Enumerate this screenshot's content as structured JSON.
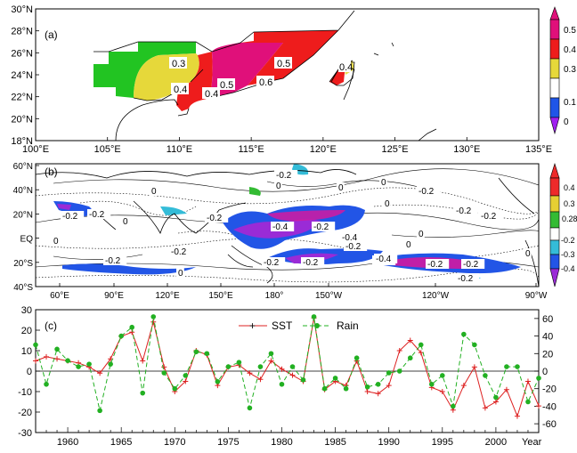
{
  "panel_a": {
    "label": "(a)",
    "lat_ticks": [
      "30°N",
      "28°N",
      "26°N",
      "24°N",
      "22°N",
      "20°N",
      "18°N"
    ],
    "lon_ticks": [
      "100°E",
      "105°E",
      "110°E",
      "115°E",
      "120°E",
      "125°E",
      "130°E",
      "135°E"
    ],
    "contour_labels": [
      "0.3",
      "0.4",
      "0.4",
      "0.5",
      "0.5",
      "0.6",
      "0.4"
    ],
    "colorbar_labels": [
      "0.5",
      "0.4",
      "0.3",
      "0.1",
      "0"
    ],
    "colors": {
      "magenta": "#e0107a",
      "red": "#ee1c1c",
      "yellow": "#e6d83a",
      "green": "#22c422",
      "blue": "#1f55e8",
      "purple": "#a020f0",
      "light_yellow": "#eadc4f"
    }
  },
  "panel_b": {
    "label": "(b)",
    "lat_ticks": [
      "60°N",
      "40°N",
      "20°N",
      "EQ",
      "20°S",
      "40°S"
    ],
    "lon_ticks": [
      "60°E",
      "90°E",
      "120°E",
      "150°E",
      "180°",
      "150°W",
      "120°W",
      "90°W"
    ],
    "contour_labels": [
      "-0.2",
      "-0.2",
      "-0.2",
      "0",
      "0",
      "0",
      "-0.2",
      "0",
      "-0.2",
      "-0.4",
      "-0.2",
      "0",
      "0",
      "0",
      "-0.2",
      "-0.2",
      "-0.2",
      "-0.4",
      "-0.4",
      "-0.2",
      "-0.2",
      "-0.2",
      "-0.4",
      "-0.2",
      "0",
      "-0.2",
      "-0.2",
      "0",
      "-0.2",
      "0",
      "0",
      "0"
    ],
    "colorbar_labels": [
      "0.4",
      "0.3",
      "0.28",
      "-0.2",
      "-0.3",
      "-0.4"
    ],
    "colors": {
      "blue": "#2255e6",
      "cyan": "#34bcd8",
      "purple": "#9a2bd6",
      "magenta": "#d21aa0",
      "green": "#33bb33",
      "yellow": "#e6cf33",
      "red": "#ee2a2a"
    }
  },
  "chart_data": {
    "type": "line",
    "panel_label": "(c)",
    "xlabel": "Year",
    "x_ticks": [
      "1960",
      "1965",
      "1970",
      "1975",
      "1980",
      "1985",
      "1990",
      "1995",
      "2000"
    ],
    "xlim": [
      1957,
      2004
    ],
    "y_left_ticks": [
      "30",
      "20",
      "10",
      "0",
      "-10",
      "-20",
      "-30"
    ],
    "ylim_left": [
      -30,
      30
    ],
    "y_right_ticks": [
      "60",
      "40",
      "20",
      "0",
      "-20",
      "-40",
      "-60"
    ],
    "ylim_right": [
      -70,
      70
    ],
    "legend": [
      "SST",
      "Rain"
    ],
    "x": [
      1957,
      1958,
      1959,
      1960,
      1961,
      1962,
      1963,
      1964,
      1965,
      1966,
      1967,
      1968,
      1969,
      1970,
      1971,
      1972,
      1973,
      1974,
      1975,
      1976,
      1977,
      1978,
      1979,
      1980,
      1981,
      1982,
      1983,
      1984,
      1985,
      1986,
      1987,
      1988,
      1989,
      1990,
      1991,
      1992,
      1993,
      1994,
      1995,
      1996,
      1997,
      1998,
      1999,
      2000,
      2001,
      2002,
      2003,
      2004
    ],
    "series": [
      {
        "name": "SST",
        "axis": "left",
        "color": "#dd2020",
        "values": [
          5,
          7,
          6,
          5,
          4,
          2,
          -1,
          6,
          17,
          19,
          5,
          24,
          2,
          -10,
          -5,
          10,
          8,
          -7,
          2,
          3,
          -1,
          -4,
          5,
          1,
          -2,
          -5,
          26,
          -9,
          -5,
          -7,
          5,
          -10,
          -11,
          -7,
          10,
          15,
          9,
          -8,
          -10,
          -19,
          -7,
          2,
          -18,
          -15,
          -9,
          -22,
          -5,
          -17
        ]
      },
      {
        "name": "Rain",
        "axis": "right",
        "color": "#22b022",
        "values": [
          30,
          -15,
          25,
          12,
          5,
          8,
          -45,
          8,
          40,
          50,
          -25,
          62,
          -2,
          -20,
          -5,
          22,
          20,
          -12,
          5,
          10,
          -42,
          5,
          20,
          -15,
          5,
          -10,
          62,
          -20,
          -8,
          -20,
          15,
          -18,
          -15,
          -2,
          0,
          15,
          30,
          -15,
          -5,
          -40,
          42,
          30,
          -5,
          -30,
          5,
          5,
          -35,
          -8
        ]
      }
    ]
  }
}
